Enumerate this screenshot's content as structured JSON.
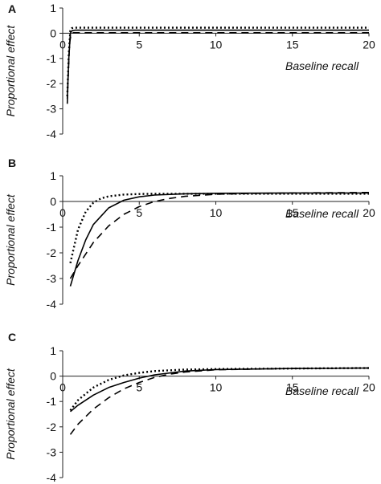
{
  "chart_data": [
    {
      "type": "line",
      "panel": "A",
      "xlabel": "Baseline recall",
      "ylabel": "Proportional effect",
      "xlim": [
        0,
        20
      ],
      "ylim": [
        -4,
        1
      ],
      "xticks": [
        "0",
        "5",
        "10",
        "15",
        "20"
      ],
      "yticks": [
        "1",
        "0",
        "-1",
        "-2",
        "-3",
        "-4"
      ],
      "legend": "none",
      "grid": false,
      "series": [
        {
          "style": "dotted",
          "x": [
            0.3,
            0.4,
            0.5,
            0.6,
            0.8,
            1,
            2,
            5,
            10,
            15,
            20
          ],
          "y": [
            -2.5,
            -0.8,
            0.1,
            0.2,
            0.22,
            0.22,
            0.22,
            0.22,
            0.22,
            0.22,
            0.22
          ]
        },
        {
          "style": "solid",
          "x": [
            0.3,
            0.4,
            0.5,
            0.6,
            0.8,
            1,
            2,
            5,
            10,
            15,
            20
          ],
          "y": [
            -2.6,
            -1.0,
            0.0,
            0.1,
            0.12,
            0.12,
            0.12,
            0.12,
            0.12,
            0.12,
            0.12
          ]
        },
        {
          "style": "dashed",
          "x": [
            0.3,
            0.35,
            0.45,
            0.55,
            0.7,
            1,
            2,
            5,
            10,
            15,
            20
          ],
          "y": [
            -2.8,
            -1.8,
            -0.4,
            0.0,
            0.02,
            0.02,
            0.02,
            0.02,
            0.02,
            0.02,
            0.02
          ]
        }
      ]
    },
    {
      "type": "line",
      "panel": "B",
      "xlabel": "Baseline recall",
      "ylabel": "Proportional effect",
      "xlim": [
        0,
        20
      ],
      "ylim": [
        -4,
        1
      ],
      "xticks": [
        "0",
        "5",
        "10",
        "15",
        "20"
      ],
      "yticks": [
        "1",
        "0",
        "-1",
        "-2",
        "-3",
        "-4"
      ],
      "legend": "none",
      "grid": false,
      "series": [
        {
          "style": "dotted",
          "x": [
            0.5,
            1,
            1.5,
            2,
            2.5,
            3,
            4,
            5,
            6,
            8,
            10,
            15,
            20
          ],
          "y": [
            -2.4,
            -1.1,
            -0.4,
            -0.05,
            0.12,
            0.2,
            0.27,
            0.29,
            0.3,
            0.3,
            0.3,
            0.3,
            0.3
          ]
        },
        {
          "style": "solid",
          "x": [
            0.5,
            1,
            1.5,
            2,
            3,
            4,
            5,
            6,
            8,
            10,
            15,
            20
          ],
          "y": [
            -3.3,
            -2.3,
            -1.5,
            -0.9,
            -0.25,
            0.05,
            0.18,
            0.25,
            0.3,
            0.32,
            0.33,
            0.33
          ]
        },
        {
          "style": "dashed",
          "x": [
            0.5,
            1,
            2,
            3,
            4,
            5,
            6,
            7,
            8,
            10,
            12,
            15,
            20
          ],
          "y": [
            -3.0,
            -2.5,
            -1.6,
            -0.95,
            -0.5,
            -0.2,
            0.0,
            0.12,
            0.2,
            0.28,
            0.31,
            0.33,
            0.35
          ]
        }
      ]
    },
    {
      "type": "line",
      "panel": "C",
      "xlabel": "Baseline recall",
      "ylabel": "Proportional effect",
      "xlim": [
        0,
        20
      ],
      "ylim": [
        -4,
        1
      ],
      "xticks": [
        "0",
        "5",
        "10",
        "15",
        "20"
      ],
      "yticks": [
        "1",
        "0",
        "-1",
        "-2",
        "-3",
        "-4"
      ],
      "legend": "none",
      "grid": false,
      "series": [
        {
          "style": "dotted",
          "x": [
            0.5,
            1,
            2,
            3,
            4,
            5,
            6,
            8,
            10,
            15,
            20
          ],
          "y": [
            -1.35,
            -0.95,
            -0.45,
            -0.15,
            0.03,
            0.13,
            0.2,
            0.26,
            0.28,
            0.3,
            0.32
          ]
        },
        {
          "style": "solid",
          "x": [
            0.5,
            1,
            2,
            3,
            4,
            5,
            6,
            8,
            10,
            15,
            20
          ],
          "y": [
            -1.4,
            -1.15,
            -0.75,
            -0.45,
            -0.25,
            -0.08,
            0.05,
            0.2,
            0.26,
            0.3,
            0.32
          ]
        },
        {
          "style": "dashed",
          "x": [
            0.5,
            1,
            2,
            3,
            4,
            5,
            6,
            7,
            8,
            10,
            15,
            20
          ],
          "y": [
            -2.3,
            -1.9,
            -1.3,
            -0.85,
            -0.5,
            -0.25,
            -0.05,
            0.08,
            0.16,
            0.25,
            0.3,
            0.32
          ]
        }
      ]
    }
  ]
}
